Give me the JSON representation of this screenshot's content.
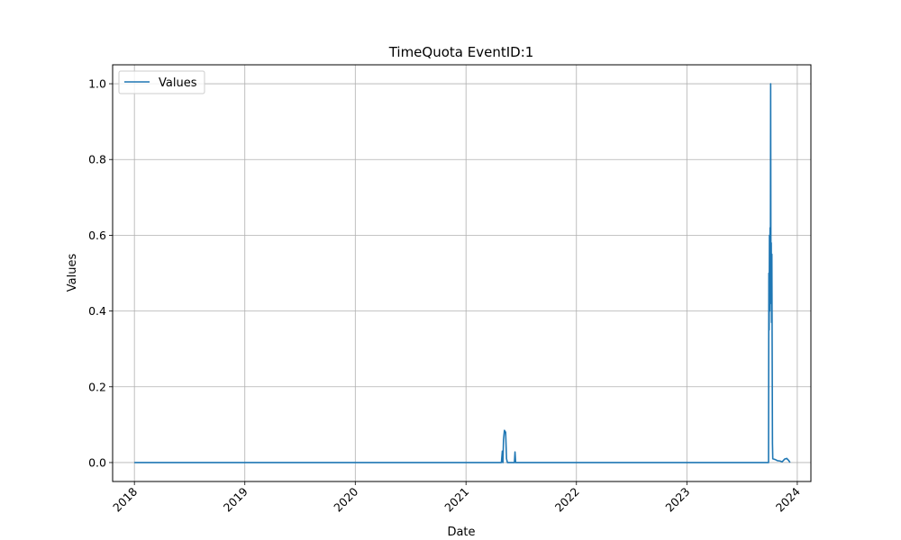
{
  "chart_data": {
    "type": "line",
    "title": "TimeQuota EventID:1",
    "xlabel": "Date",
    "ylabel": "Values",
    "x_axis_type": "date",
    "xlim": [
      "2017-10-21",
      "2024-02-15"
    ],
    "ylim": [
      -0.05,
      1.05
    ],
    "x_ticks": [
      "2018",
      "2019",
      "2020",
      "2021",
      "2022",
      "2023",
      "2024"
    ],
    "y_ticks": [
      "0.0",
      "0.2",
      "0.4",
      "0.6",
      "0.8",
      "1.0"
    ],
    "grid": true,
    "legend_position": "upper-left",
    "series": [
      {
        "name": "Values",
        "color": "#1f77b4",
        "points": [
          [
            "2018-01-01",
            0.0
          ],
          [
            "2020-10-01",
            0.0
          ],
          [
            "2021-04-28",
            0.0
          ],
          [
            "2021-05-01",
            0.03
          ],
          [
            "2021-05-03",
            0.0
          ],
          [
            "2021-05-05",
            0.06
          ],
          [
            "2021-05-08",
            0.085
          ],
          [
            "2021-05-12",
            0.08
          ],
          [
            "2021-05-15",
            0.01
          ],
          [
            "2021-05-18",
            0.0
          ],
          [
            "2021-06-10",
            0.0
          ],
          [
            "2021-06-12",
            0.028
          ],
          [
            "2021-06-14",
            0.0
          ],
          [
            "2023-09-25",
            0.0
          ],
          [
            "2023-09-28",
            0.0
          ],
          [
            "2023-09-29",
            0.5
          ],
          [
            "2023-09-30",
            0.35
          ],
          [
            "2023-10-01",
            0.6
          ],
          [
            "2023-10-02",
            0.4
          ],
          [
            "2023-10-03",
            0.62
          ],
          [
            "2023-10-04",
            0.45
          ],
          [
            "2023-10-05",
            1.0
          ],
          [
            "2023-10-06",
            0.42
          ],
          [
            "2023-10-07",
            0.58
          ],
          [
            "2023-10-08",
            0.37
          ],
          [
            "2023-10-09",
            0.55
          ],
          [
            "2023-10-11",
            0.05
          ],
          [
            "2023-10-12",
            0.01
          ],
          [
            "2023-10-20",
            0.008
          ],
          [
            "2023-10-27",
            0.005
          ],
          [
            "2023-11-05",
            0.004
          ],
          [
            "2023-11-12",
            0.002
          ],
          [
            "2023-11-20",
            0.009
          ],
          [
            "2023-11-27",
            0.011
          ],
          [
            "2023-12-04",
            0.005
          ],
          [
            "2023-12-08",
            0.0
          ]
        ]
      }
    ]
  }
}
